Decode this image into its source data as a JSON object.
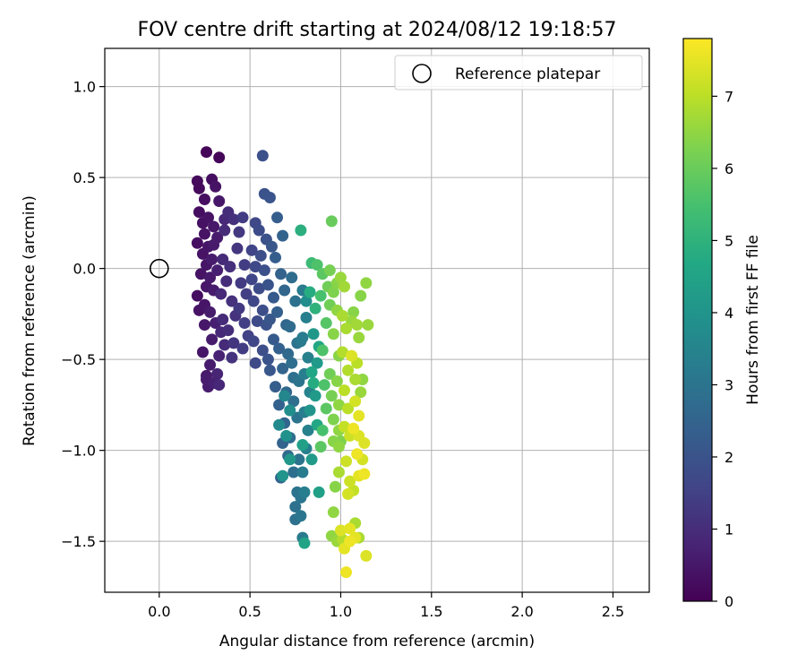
{
  "chart_data": {
    "type": "scatter",
    "title": "FOV centre drift starting at 2024/08/12 19:18:57",
    "xlabel": "Angular distance from reference (arcmin)",
    "ylabel": "Rotation from reference (arcmin)",
    "xlim": [
      -0.3,
      2.7
    ],
    "ylim": [
      -1.78,
      1.21
    ],
    "xticks": [
      "0.0",
      "0.5",
      "1.0",
      "1.5",
      "2.0",
      "2.5"
    ],
    "yticks": [
      "1.0",
      "0.5",
      "0.0",
      "−0.5",
      "−1.0",
      "−1.5"
    ],
    "xtick_values": [
      0,
      0.5,
      1.0,
      1.5,
      2.0,
      2.5
    ],
    "ytick_values": [
      1.0,
      0.5,
      0.0,
      -0.5,
      -1.0,
      -1.5
    ],
    "grid": true,
    "legend": {
      "placement": "top-right",
      "entries": [
        "Reference platepar"
      ]
    },
    "reference_point": {
      "x": 0.0,
      "y": 0.0
    },
    "colorbar": {
      "label": "Hours from first FF file",
      "range": [
        0,
        7.8
      ],
      "ticks": [
        "0",
        "1",
        "2",
        "3",
        "4",
        "5",
        "6",
        "7"
      ],
      "tick_values": [
        0,
        1,
        2,
        3,
        4,
        5,
        6,
        7
      ],
      "colormap": "viridis"
    },
    "points": [
      [
        0.26,
        0.64,
        0.1
      ],
      [
        0.33,
        0.61,
        0.1
      ],
      [
        0.21,
        0.48,
        0.2
      ],
      [
        0.29,
        0.49,
        0.3
      ],
      [
        0.22,
        0.44,
        0.2
      ],
      [
        0.31,
        0.45,
        0.4
      ],
      [
        0.25,
        0.38,
        0.3
      ],
      [
        0.33,
        0.37,
        0.5
      ],
      [
        0.22,
        0.31,
        0.3
      ],
      [
        0.27,
        0.28,
        0.4
      ],
      [
        0.24,
        0.25,
        0.35
      ],
      [
        0.3,
        0.23,
        0.5
      ],
      [
        0.25,
        0.19,
        0.4
      ],
      [
        0.32,
        0.17,
        0.6
      ],
      [
        0.21,
        0.14,
        0.3
      ],
      [
        0.27,
        0.12,
        0.45
      ],
      [
        0.3,
        0.13,
        0.55
      ],
      [
        0.24,
        0.08,
        0.4
      ],
      [
        0.26,
        0.02,
        0.45
      ],
      [
        0.29,
        0.05,
        0.6
      ],
      [
        0.23,
        -0.03,
        0.4
      ],
      [
        0.28,
        -0.05,
        0.55
      ],
      [
        0.32,
        -0.01,
        0.7
      ],
      [
        0.26,
        -0.1,
        0.5
      ],
      [
        0.3,
        -0.12,
        0.6
      ],
      [
        0.21,
        -0.15,
        0.3
      ],
      [
        0.25,
        -0.2,
        0.45
      ],
      [
        0.22,
        -0.23,
        0.4
      ],
      [
        0.28,
        -0.24,
        0.6
      ],
      [
        0.31,
        -0.3,
        0.7
      ],
      [
        0.25,
        -0.31,
        0.5
      ],
      [
        0.34,
        -0.35,
        0.85
      ],
      [
        0.29,
        -0.39,
        0.6
      ],
      [
        0.24,
        -0.46,
        0.45
      ],
      [
        0.33,
        -0.48,
        0.75
      ],
      [
        0.28,
        -0.53,
        0.6
      ],
      [
        0.32,
        -0.58,
        0.8
      ],
      [
        0.26,
        -0.61,
        0.6
      ],
      [
        0.3,
        -0.63,
        0.7
      ],
      [
        0.27,
        -0.65,
        0.6
      ],
      [
        0.33,
        -0.64,
        0.85
      ],
      [
        0.26,
        -0.59,
        0.55
      ],
      [
        0.36,
        0.27,
        0.9
      ],
      [
        0.38,
        0.31,
        1.0
      ],
      [
        0.36,
        0.21,
        0.95
      ],
      [
        0.35,
        0.05,
        0.95
      ],
      [
        0.37,
        -0.07,
        1.0
      ],
      [
        0.39,
        0.01,
        1.05
      ],
      [
        0.34,
        -0.14,
        0.9
      ],
      [
        0.4,
        -0.18,
        1.1
      ],
      [
        0.35,
        -0.28,
        0.95
      ],
      [
        0.38,
        -0.34,
        1.0
      ],
      [
        0.36,
        -0.42,
        0.95
      ],
      [
        0.41,
        0.27,
        1.1
      ],
      [
        0.42,
        -0.26,
        1.15
      ],
      [
        0.44,
        0.2,
        1.3
      ],
      [
        0.46,
        0.28,
        1.4
      ],
      [
        0.43,
        0.11,
        1.25
      ],
      [
        0.47,
        0.02,
        1.4
      ],
      [
        0.45,
        -0.08,
        1.35
      ],
      [
        0.48,
        -0.14,
        1.45
      ],
      [
        0.44,
        -0.22,
        1.3
      ],
      [
        0.47,
        -0.3,
        1.45
      ],
      [
        0.41,
        -0.41,
        1.2
      ],
      [
        0.46,
        -0.44,
        1.4
      ],
      [
        0.49,
        -0.37,
        1.5
      ],
      [
        0.4,
        -0.49,
        1.15
      ],
      [
        0.57,
        0.62,
        1.9
      ],
      [
        0.58,
        0.41,
        1.95
      ],
      [
        0.61,
        0.39,
        2.05
      ],
      [
        0.53,
        0.25,
        1.7
      ],
      [
        0.55,
        0.21,
        1.8
      ],
      [
        0.59,
        0.16,
        1.95
      ],
      [
        0.51,
        0.1,
        1.6
      ],
      [
        0.56,
        0.07,
        1.85
      ],
      [
        0.53,
        0.01,
        1.7
      ],
      [
        0.58,
        -0.01,
        1.9
      ],
      [
        0.51,
        -0.06,
        1.6
      ],
      [
        0.55,
        -0.11,
        1.8
      ],
      [
        0.6,
        -0.09,
        2.0
      ],
      [
        0.52,
        -0.18,
        1.65
      ],
      [
        0.57,
        -0.23,
        1.85
      ],
      [
        0.54,
        -0.29,
        1.75
      ],
      [
        0.59,
        -0.31,
        1.95
      ],
      [
        0.52,
        -0.4,
        1.65
      ],
      [
        0.57,
        -0.45,
        1.85
      ],
      [
        0.53,
        -0.52,
        1.7
      ],
      [
        0.6,
        -0.5,
        2.0
      ],
      [
        0.62,
        0.12,
        2.1
      ],
      [
        0.63,
        -0.16,
        2.2
      ],
      [
        0.61,
        -0.28,
        2.1
      ],
      [
        0.63,
        -0.39,
        2.2
      ],
      [
        0.61,
        -0.56,
        2.1
      ],
      [
        0.65,
        0.28,
        2.3
      ],
      [
        0.68,
        0.18,
        2.45
      ],
      [
        0.64,
        0.06,
        2.3
      ],
      [
        0.67,
        -0.03,
        2.45
      ],
      [
        0.69,
        -0.12,
        2.55
      ],
      [
        0.65,
        -0.24,
        2.35
      ],
      [
        0.7,
        -0.31,
        2.6
      ],
      [
        0.66,
        -0.44,
        2.4
      ],
      [
        0.68,
        -0.55,
        2.5
      ],
      [
        0.64,
        -0.65,
        2.3
      ],
      [
        0.7,
        -0.68,
        2.6
      ],
      [
        0.66,
        -0.75,
        2.4
      ],
      [
        0.69,
        -0.85,
        2.55
      ],
      [
        0.68,
        -0.96,
        2.5
      ],
      [
        0.71,
        -1.03,
        2.65
      ],
      [
        0.67,
        -1.15,
        2.45
      ],
      [
        0.73,
        -0.05,
        2.75
      ],
      [
        0.75,
        -0.18,
        2.9
      ],
      [
        0.72,
        -0.32,
        2.7
      ],
      [
        0.76,
        -0.41,
        2.95
      ],
      [
        0.73,
        -0.52,
        2.8
      ],
      [
        0.77,
        -0.62,
        3.0
      ],
      [
        0.74,
        -0.73,
        2.85
      ],
      [
        0.76,
        -0.82,
        2.95
      ],
      [
        0.72,
        -0.93,
        2.75
      ],
      [
        0.77,
        -1.05,
        3.0
      ],
      [
        0.74,
        -1.12,
        2.85
      ],
      [
        0.76,
        -1.23,
        2.95
      ],
      [
        0.75,
        -1.31,
        2.9
      ],
      [
        0.78,
        -1.26,
        3.05
      ],
      [
        0.75,
        -1.38,
        2.9
      ],
      [
        0.78,
        -1.36,
        3.05
      ],
      [
        0.79,
        -0.12,
        3.2
      ],
      [
        0.81,
        -0.27,
        3.35
      ],
      [
        0.79,
        -0.38,
        3.2
      ],
      [
        0.82,
        -0.49,
        3.4
      ],
      [
        0.8,
        -0.58,
        3.3
      ],
      [
        0.83,
        -0.68,
        3.45
      ],
      [
        0.8,
        -0.79,
        3.3
      ],
      [
        0.82,
        -0.89,
        3.4
      ],
      [
        0.81,
        -0.99,
        3.35
      ],
      [
        0.79,
        -1.12,
        3.2
      ],
      [
        0.8,
        -1.23,
        3.3
      ],
      [
        0.8,
        -1.51,
        4.5
      ],
      [
        0.79,
        -1.48,
        3.2
      ],
      [
        0.78,
        -0.4,
        3.15
      ],
      [
        0.74,
        -0.6,
        2.85
      ],
      [
        0.71,
        -0.47,
        2.65
      ],
      [
        0.69,
        -0.7,
        3.6
      ],
      [
        0.66,
        -0.86,
        3.7
      ],
      [
        0.72,
        -0.78,
        3.8
      ],
      [
        0.68,
        -1.14,
        4.0
      ],
      [
        0.72,
        -1.05,
        4.1
      ],
      [
        0.7,
        -0.92,
        3.9
      ],
      [
        0.81,
        -0.18,
        3.8
      ],
      [
        0.85,
        -0.36,
        4.1
      ],
      [
        0.87,
        -0.52,
        4.2
      ],
      [
        0.83,
        -0.78,
        4.0
      ],
      [
        0.86,
        -0.7,
        4.2
      ],
      [
        0.88,
        -1.23,
        4.4
      ],
      [
        0.84,
        -1.05,
        4.2
      ],
      [
        0.78,
        0.21,
        4.9
      ],
      [
        0.84,
        0.03,
        5.3
      ],
      [
        0.83,
        -0.13,
        4.8
      ],
      [
        0.86,
        -0.22,
        5.0
      ],
      [
        0.88,
        -0.43,
        4.6
      ],
      [
        0.84,
        -0.57,
        4.6
      ],
      [
        0.85,
        -0.63,
        4.8
      ],
      [
        0.87,
        -0.86,
        4.6
      ],
      [
        0.79,
        -0.97,
        4.4
      ],
      [
        0.9,
        -0.03,
        5.8
      ],
      [
        0.89,
        -0.15,
        5.5
      ],
      [
        0.92,
        -0.3,
        5.7
      ],
      [
        0.9,
        -0.45,
        5.6
      ],
      [
        0.91,
        -0.64,
        5.6
      ],
      [
        0.92,
        -0.77,
        5.8
      ],
      [
        0.9,
        -0.89,
        5.5
      ],
      [
        0.89,
        -0.98,
        5.8
      ],
      [
        0.87,
        0.02,
        5.6
      ],
      [
        0.95,
        0.26,
        6.0
      ],
      [
        0.94,
        -0.01,
        6.2
      ],
      [
        0.93,
        -0.1,
        6.1
      ],
      [
        0.96,
        -0.13,
        6.3
      ],
      [
        0.98,
        -0.08,
        6.4
      ],
      [
        0.94,
        -0.2,
        6.1
      ],
      [
        0.98,
        -0.23,
        6.5
      ],
      [
        0.96,
        -0.36,
        6.4
      ],
      [
        0.99,
        -0.48,
        6.4
      ],
      [
        0.94,
        -0.58,
        6.1
      ],
      [
        0.98,
        -0.62,
        6.4
      ],
      [
        0.95,
        -0.7,
        6.2
      ],
      [
        0.99,
        -0.75,
        6.5
      ],
      [
        0.96,
        -0.83,
        6.3
      ],
      [
        0.99,
        -0.89,
        6.5
      ],
      [
        0.96,
        -0.95,
        6.4
      ],
      [
        0.99,
        -0.98,
        6.5
      ],
      [
        0.97,
        -1.2,
        6.4
      ],
      [
        0.96,
        -1.34,
        6.5
      ],
      [
        0.95,
        -1.47,
        6.5
      ],
      [
        0.98,
        -1.5,
        6.6
      ],
      [
        1.0,
        -0.05,
        6.6
      ],
      [
        1.02,
        -0.1,
        6.7
      ],
      [
        1.01,
        -0.26,
        6.8
      ],
      [
        1.03,
        -0.33,
        6.8
      ],
      [
        1.01,
        -0.46,
        6.9
      ],
      [
        1.04,
        -0.56,
        6.9
      ],
      [
        1.02,
        -0.67,
        7.0
      ],
      [
        1.04,
        -0.77,
        7.0
      ],
      [
        1.02,
        -0.87,
        7.1
      ],
      [
        1.05,
        -0.92,
        7.2
      ],
      [
        1.03,
        -1.06,
        7.2
      ],
      [
        1.05,
        -1.17,
        7.2
      ],
      [
        1.04,
        -1.24,
        7.3
      ],
      [
        1.07,
        -1.22,
        7.1
      ],
      [
        1.02,
        -1.54,
        7.5
      ],
      [
        1.05,
        -1.5,
        7.6
      ],
      [
        1.08,
        -1.48,
        7.5
      ],
      [
        1.03,
        -1.67,
        7.6
      ],
      [
        1.08,
        -1.4,
        6.8
      ],
      [
        1.06,
        -0.29,
        6.6
      ],
      [
        1.09,
        -0.31,
        6.7
      ],
      [
        1.1,
        -0.38,
        6.6
      ],
      [
        1.06,
        -0.48,
        7.4
      ],
      [
        1.09,
        -0.52,
        7.0
      ],
      [
        1.08,
        -0.61,
        6.8
      ],
      [
        1.11,
        -0.68,
        6.6
      ],
      [
        1.08,
        -0.73,
        7.3
      ],
      [
        1.1,
        -0.81,
        7.5
      ],
      [
        1.07,
        -0.88,
        7.6
      ],
      [
        1.1,
        -0.92,
        7.4
      ],
      [
        1.09,
        -1.02,
        7.6
      ],
      [
        1.12,
        -1.05,
        7.3
      ],
      [
        1.1,
        -1.14,
        7.5
      ],
      [
        1.13,
        -1.13,
        7.6
      ],
      [
        1.11,
        -0.15,
        6.4
      ],
      [
        1.14,
        -0.08,
        6.5
      ],
      [
        1.15,
        -0.31,
        6.6
      ],
      [
        1.12,
        -0.61,
        6.5
      ],
      [
        1.13,
        -0.96,
        7.4
      ],
      [
        1.14,
        -1.58,
        7.4
      ],
      [
        1.1,
        -1.48,
        6.8
      ],
      [
        1.07,
        -0.24,
        6.4
      ],
      [
        1.0,
        -0.95,
        6.3
      ],
      [
        1.01,
        -1.49,
        6.9
      ],
      [
        1.0,
        -1.44,
        7.4
      ],
      [
        1.05,
        -1.43,
        7.5
      ],
      [
        0.99,
        -1.12,
        6.8
      ]
    ]
  }
}
